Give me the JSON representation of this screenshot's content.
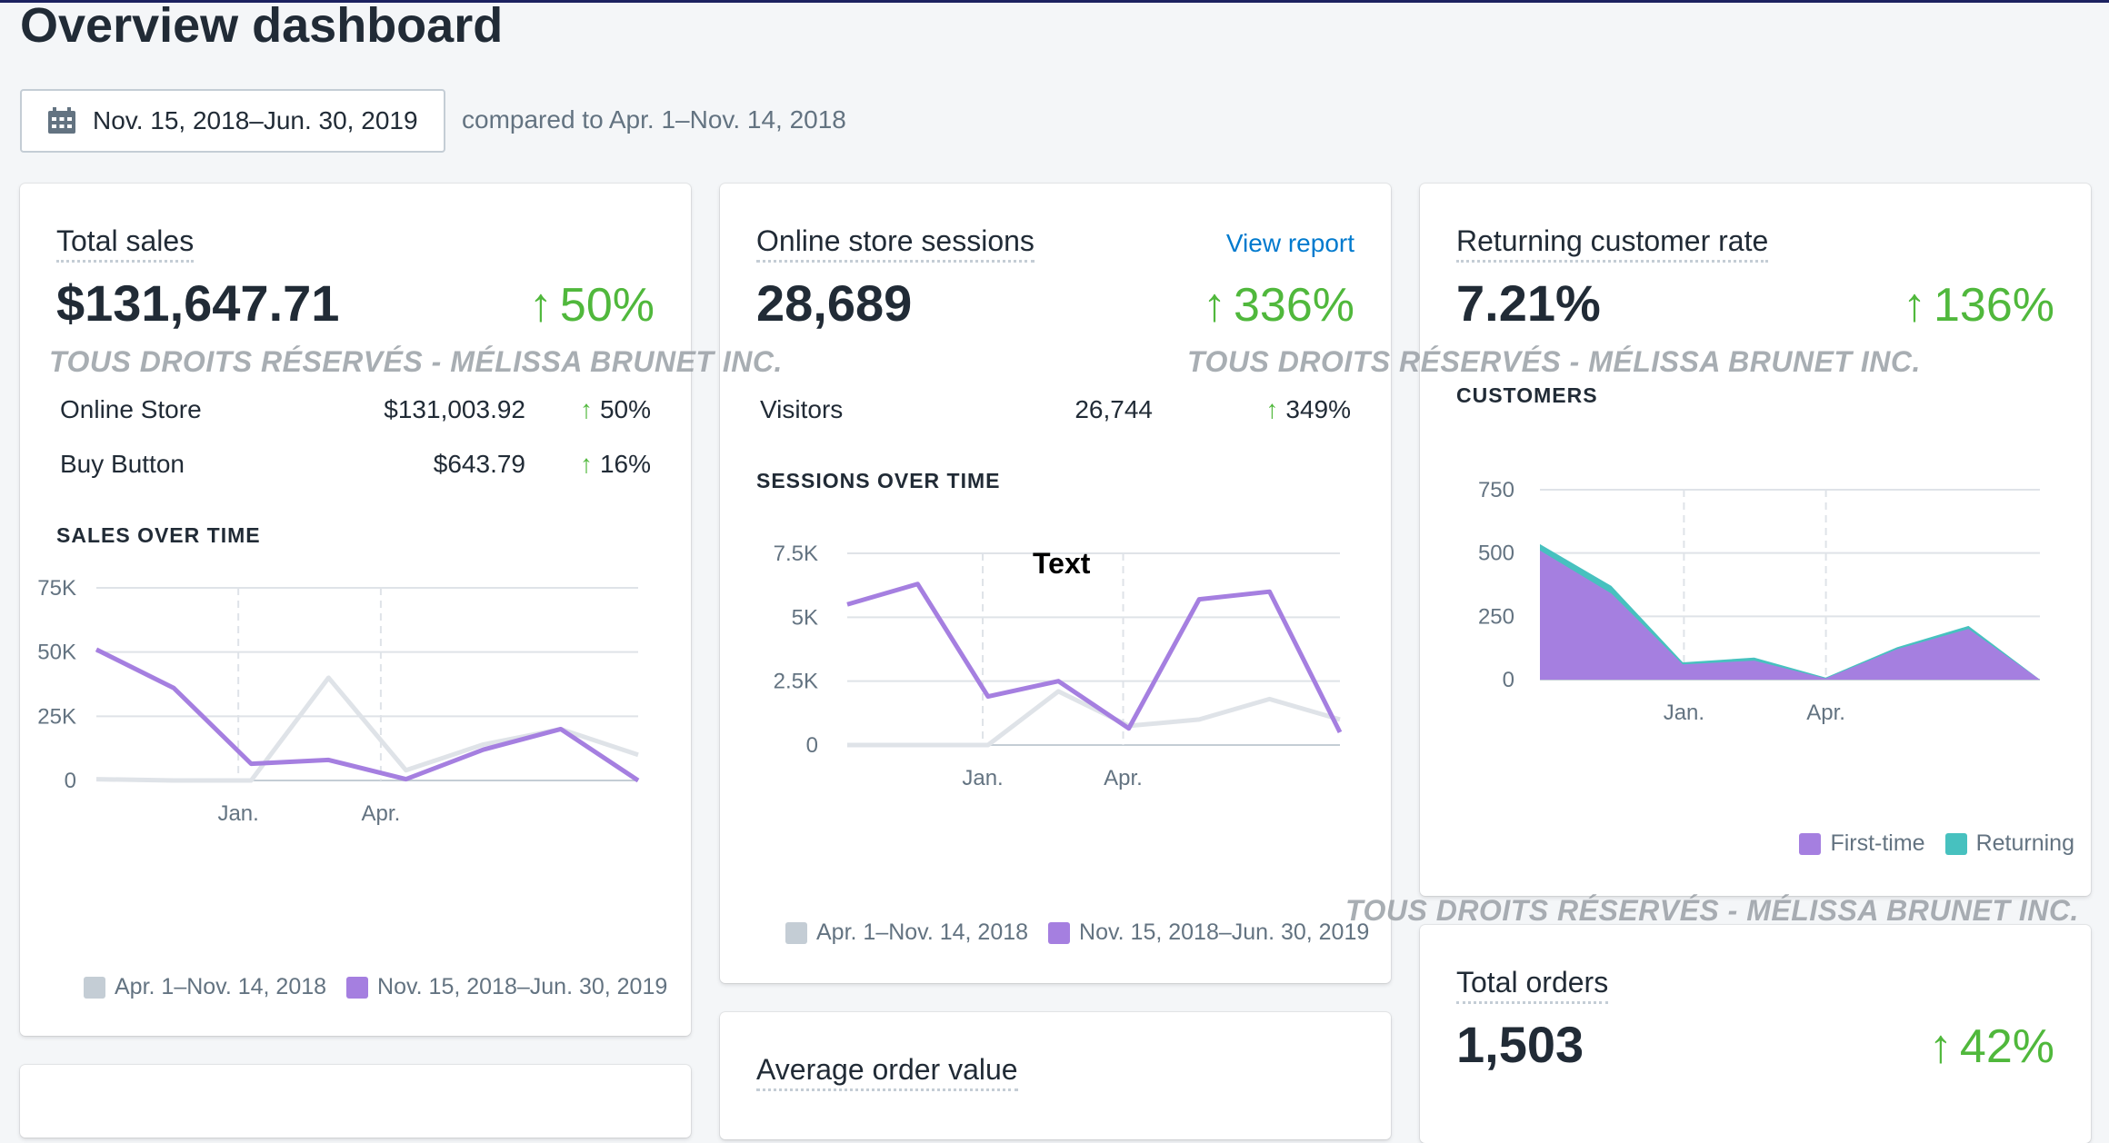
{
  "page": {
    "title": "Overview dashboard",
    "date_range": "Nov. 15, 2018–Jun. 30, 2019",
    "compare_text": "compared to Apr. 1–Nov. 14, 2018",
    "watermark": "TOUS DROITS RÉSERVÉS - MÉLISSA BRUNET INC."
  },
  "colors": {
    "accent": "#a57fe0",
    "prev": "#dfe3e8",
    "positive": "#50b83c",
    "link": "#007ace",
    "returning": "#47c1bf"
  },
  "total_sales": {
    "title": "Total sales",
    "value": "$131,647.71",
    "change": "50%",
    "rows": [
      {
        "label": "Online Store",
        "value": "$131,003.92",
        "change": "50%"
      },
      {
        "label": "Buy Button",
        "value": "$643.79",
        "change": "16%"
      }
    ],
    "chart_title": "SALES OVER TIME",
    "legend": [
      "Apr. 1–Nov. 14, 2018",
      "Nov. 15, 2018–Jun. 30, 2019"
    ]
  },
  "sessions": {
    "title": "Online store sessions",
    "link": "View report",
    "value": "28,689",
    "change": "336%",
    "rows": [
      {
        "label": "Visitors",
        "value": "26,744",
        "change": "349%"
      }
    ],
    "chart_title": "SESSIONS OVER TIME",
    "annotation": "Text",
    "legend": [
      "Apr. 1–Nov. 14, 2018",
      "Nov. 15, 2018–Jun. 30, 2019"
    ]
  },
  "returning": {
    "title": "Returning customer rate",
    "value": "7.21%",
    "change": "136%",
    "chart_title": "CUSTOMERS",
    "legend": [
      "First-time",
      "Returning"
    ]
  },
  "average_order": {
    "title": "Average order value"
  },
  "total_orders": {
    "title": "Total orders",
    "value": "1,503",
    "change": "42%"
  },
  "chart_data": [
    {
      "type": "line",
      "title": "SALES OVER TIME",
      "ylim": [
        0,
        75000
      ],
      "y_ticks": [
        "0",
        "25K",
        "50K",
        "75K"
      ],
      "x_ticks": [
        "Jan.",
        "Apr."
      ],
      "grid": true,
      "legend": "bottom",
      "series": [
        {
          "name": "Apr. 1–Nov. 14, 2018",
          "values": [
            500,
            0,
            0,
            40000,
            4000,
            14000,
            20000,
            10000
          ]
        },
        {
          "name": "Nov. 15, 2018–Jun. 30, 2019",
          "values": [
            51000,
            36000,
            6500,
            8000,
            500,
            12000,
            20000,
            0
          ]
        }
      ]
    },
    {
      "type": "line",
      "title": "SESSIONS OVER TIME",
      "ylim": [
        0,
        7500
      ],
      "y_ticks": [
        "0",
        "2.5K",
        "5K",
        "7.5K"
      ],
      "x_ticks": [
        "Jan.",
        "Apr."
      ],
      "grid": true,
      "legend": "bottom",
      "series": [
        {
          "name": "Apr. 1–Nov. 14, 2018",
          "values": [
            0,
            0,
            0,
            2100,
            750,
            1000,
            1800,
            1000
          ]
        },
        {
          "name": "Nov. 15, 2018–Jun. 30, 2019",
          "values": [
            5500,
            6300,
            1900,
            2500,
            650,
            5700,
            6000,
            500
          ]
        }
      ]
    },
    {
      "type": "area",
      "title": "CUSTOMERS",
      "ylim": [
        0,
        750
      ],
      "y_ticks": [
        "0",
        "250",
        "500",
        "750"
      ],
      "x_ticks": [
        "Jan.",
        "Apr."
      ],
      "grid": true,
      "legend": "bottom",
      "series": [
        {
          "name": "First-time",
          "values": [
            510,
            340,
            60,
            75,
            5,
            120,
            200,
            0
          ]
        },
        {
          "name": "Returning",
          "values": [
            25,
            30,
            8,
            12,
            3,
            8,
            12,
            0
          ]
        }
      ]
    }
  ]
}
